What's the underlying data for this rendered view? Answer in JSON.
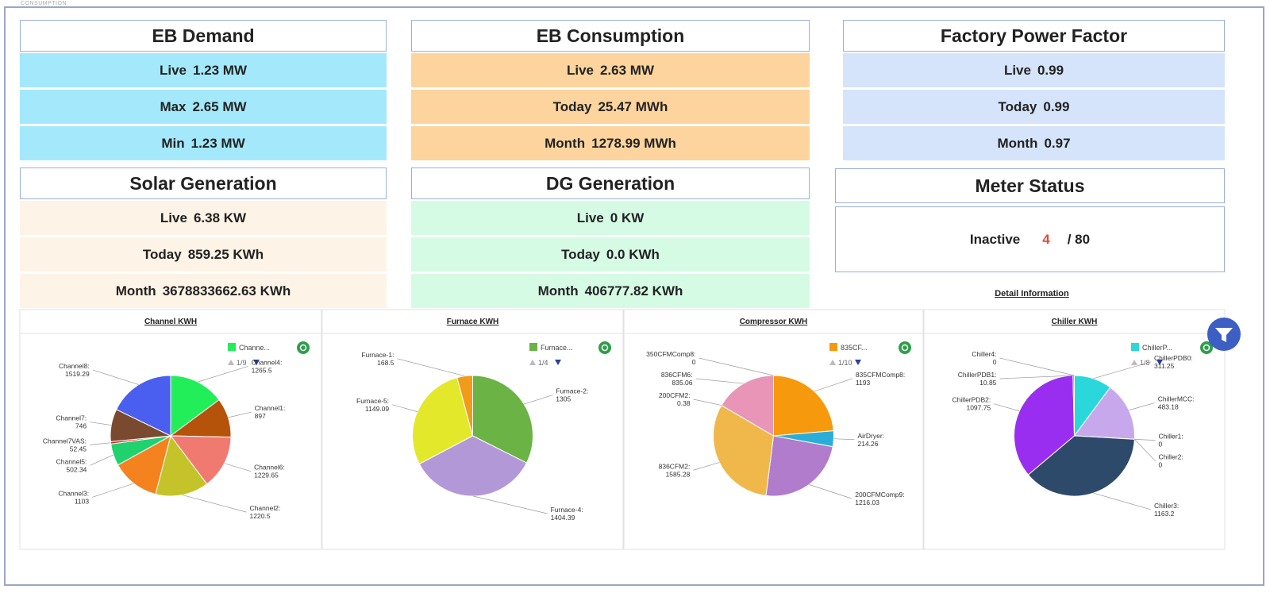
{
  "tab": "CONSUMPTION",
  "cards": [
    {
      "title": "EB Demand",
      "color": "#a3e9fb",
      "rows": [
        {
          "label": "Live",
          "value": "1.23 MW"
        },
        {
          "label": "Max",
          "value": "2.65 MW"
        },
        {
          "label": "Min",
          "value": "1.23 MW"
        }
      ]
    },
    {
      "title": "EB Consumption",
      "color": "#fdd49e",
      "rows": [
        {
          "label": "Live",
          "value": "2.63 MW"
        },
        {
          "label": "Today",
          "value": "25.47 MWh"
        },
        {
          "label": "Month",
          "value": "1278.99 MWh"
        }
      ]
    },
    {
      "title": "Factory Power Factor",
      "color": "#d5e4fb",
      "rows": [
        {
          "label": "Live",
          "value": "0.99"
        },
        {
          "label": "Today",
          "value": "0.99"
        },
        {
          "label": "Month",
          "value": "0.97"
        }
      ]
    },
    {
      "title": "Solar Generation",
      "color": "#fdf3e6",
      "rows": [
        {
          "label": "Live",
          "value": "6.38 KW"
        },
        {
          "label": "Today",
          "value": "859.25 KWh"
        },
        {
          "label": "Month",
          "value": "3678833662.63 KWh"
        }
      ]
    },
    {
      "title": "DG Generation",
      "color": "#d6fbe5",
      "rows": [
        {
          "label": "Live",
          "value": "0 KW"
        },
        {
          "label": "Today",
          "value": "0.0 KWh"
        },
        {
          "label": "Month",
          "value": "406777.82 KWh"
        }
      ]
    }
  ],
  "meter_status": {
    "title": "Meter Status",
    "label": "Inactive",
    "count": "4",
    "total": "/ 80",
    "link": "Detail Information"
  },
  "chart_data": [
    {
      "type": "pie",
      "title": "Channel KWH",
      "legend_label": "Channe...",
      "legend_page": "1/9",
      "categories": [
        "Channel4:",
        "Channel1:",
        "Channel6:",
        "Channel2:",
        "Channel3:",
        "Channel5:",
        "Channel7VAS:",
        "Channel7:",
        "Channel8:"
      ],
      "values": [
        1265.5,
        897,
        1229.65,
        1220.5,
        1103,
        502.34,
        52.45,
        746,
        1519.29
      ],
      "colors": [
        "#22ee5a",
        "#b5530a",
        "#f07a70",
        "#c4c42a",
        "#f4821f",
        "#1fd26e",
        "#e0202a",
        "#7a4a30",
        "#4a5ef0"
      ]
    },
    {
      "type": "pie",
      "title": "Furnace KWH",
      "legend_label": "Furnace...",
      "legend_page": "1/4",
      "categories": [
        "Furnace-2:",
        "Furnace-4:",
        "Furnace-5:",
        "Furnace-1:"
      ],
      "values": [
        1305,
        1404.39,
        1149.09,
        168.5
      ],
      "colors": [
        "#6ab344",
        "#b398d8",
        "#e3e82a",
        "#f29a1a"
      ]
    },
    {
      "type": "pie",
      "title": "Compressor KWH",
      "legend_label": "835CF...",
      "legend_page": "1/10",
      "categories": [
        "835CFMComp8:",
        "AirDryer:",
        "200CFMComp9:",
        "836CFM2:",
        "200CFM2:",
        "836CFM6:",
        "350CFMComp8:"
      ],
      "values": [
        1193,
        214.26,
        1216.03,
        1585.28,
        0.38,
        835.06,
        0
      ],
      "colors": [
        "#f7990c",
        "#2aaed8",
        "#b07ccb",
        "#f0b84a",
        "#e0d27a",
        "#e895b8",
        "#888888"
      ]
    },
    {
      "type": "pie",
      "title": "Chiller KWH",
      "legend_label": "ChillerP...",
      "legend_page": "1/8",
      "categories": [
        "ChillerPDB0:",
        "ChillerMCC:",
        "Chiller1:",
        "Chiller2:",
        "Chiller3:",
        "ChillerPDB2:",
        "ChillerPDB1:",
        "Chiller4:"
      ],
      "values": [
        311.25,
        483.18,
        0,
        0,
        1163.2,
        1097.75,
        10.85,
        0
      ],
      "colors": [
        "#2ad8dc",
        "#c8a8ec",
        "#aaaaaa",
        "#bbbbbb",
        "#2d4a6a",
        "#9a2ef0",
        "#f04a80",
        "#cccccc"
      ]
    }
  ]
}
